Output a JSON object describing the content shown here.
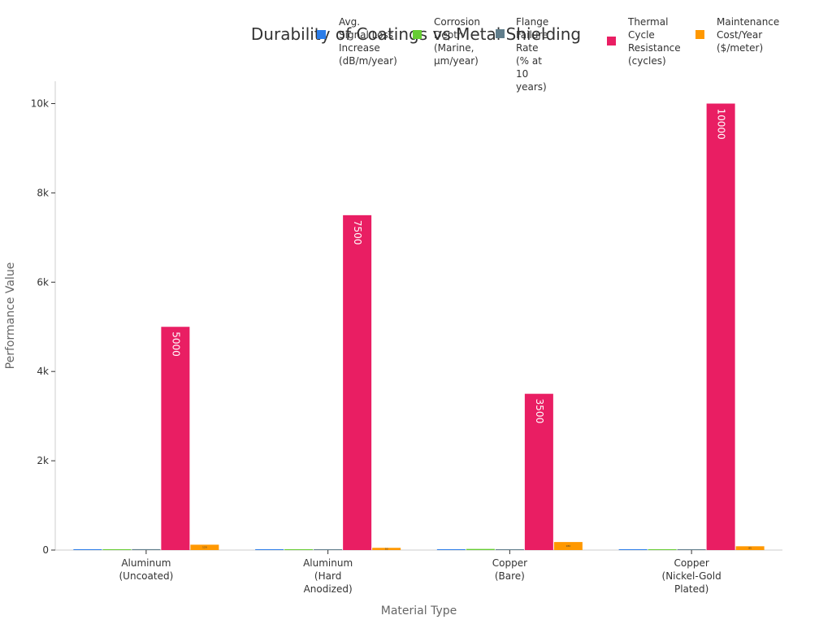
{
  "chart_data": {
    "type": "bar",
    "title": "Durability of Coatings vs Metal Shielding",
    "xlabel": "Material Type",
    "ylabel": "Performance Value",
    "ylim": [
      0,
      10500
    ],
    "ytick_values": [
      0,
      2000,
      4000,
      6000,
      8000,
      10000
    ],
    "ytick_labels": [
      "0",
      "2k",
      "4k",
      "6k",
      "8k",
      "10k"
    ],
    "categories": [
      "Aluminum\n(Uncoated)",
      "Aluminum\n(Hard\nAnodized)",
      "Copper\n(Bare)",
      "Copper\n(Nickel-Gold\nPlated)"
    ],
    "series": [
      {
        "name": "Avg. Signal Loss Increase (dB/m/year)",
        "legend_label": "Avg.\nSignal Loss\nIncrease\n(dB/m/year)",
        "color": "#2b7de9",
        "values": [
          0.25,
          0.05,
          0.35,
          0.02
        ],
        "value_labels": [
          "",
          "",
          "",
          ""
        ]
      },
      {
        "name": "Corrosion Depth (Marine, µm/year)",
        "legend_label": "Corrosion\nDepth\n(Marine,\nµm/year)",
        "color": "#66cc33",
        "values": [
          15,
          1,
          25,
          0.5
        ],
        "value_labels": [
          "",
          "",
          "",
          ""
        ]
      },
      {
        "name": "Flange Failure Rate (% at 10 years)",
        "legend_label": "Flange\nFailure Rate\n(% at 10 years)",
        "color": "#607d8b",
        "values": [
          20,
          3,
          12,
          2
        ],
        "value_labels": [
          "",
          "",
          "",
          ""
        ]
      },
      {
        "name": "Thermal Cycle Resistance (cycles)",
        "legend_label": "Thermal\nCycle\nResistance\n(cycles)",
        "color": "#e91e63",
        "values": [
          5000,
          7500,
          3500,
          10000
        ],
        "value_labels": [
          "5000",
          "7500",
          "3500",
          "10000"
        ]
      },
      {
        "name": "Maintenance Cost/Year ($/meter)",
        "legend_label": "Maintenance\nCost/Year\n($/meter)",
        "color": "#ff9800",
        "values": [
          120,
          50,
          180,
          85
        ],
        "value_labels": [
          "120",
          "50",
          "180",
          "85"
        ]
      }
    ]
  }
}
